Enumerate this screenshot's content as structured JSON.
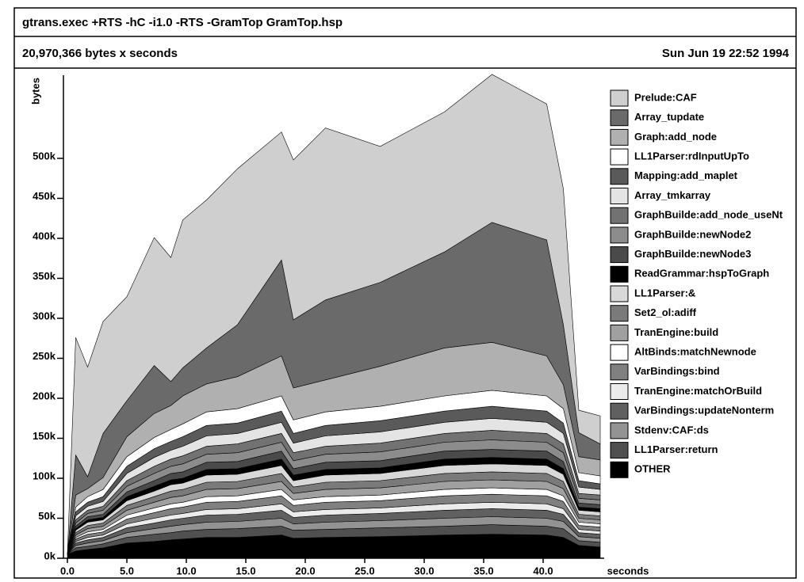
{
  "chart_data": {
    "type": "stacked_area",
    "title": "gtrans.exec +RTS -hC -i1.0 -RTS -GramTop GramTop.hsp",
    "subtitle": "20,970,366 bytes x seconds",
    "date": "Sun Jun 19 22:52 1994",
    "y_label": "bytes",
    "x_label": "seconds",
    "x": [
      0,
      0.7,
      1.7,
      3,
      5,
      7.3,
      8.7,
      9.7,
      11.7,
      14.3,
      18,
      19,
      21.7,
      26.3,
      31.7,
      35.7,
      40.3,
      41.7,
      43,
      44.8
    ],
    "xlim": [
      0,
      45
    ],
    "xticks": [
      {
        "value": 0,
        "label": "0.0"
      },
      {
        "value": 5,
        "label": "5.0"
      },
      {
        "value": 10,
        "label": "10.0"
      },
      {
        "value": 15,
        "label": "15.0"
      },
      {
        "value": 20,
        "label": "20.0"
      },
      {
        "value": 25,
        "label": "25.0"
      },
      {
        "value": 30,
        "label": "30.0"
      },
      {
        "value": 35,
        "label": "35.0"
      },
      {
        "value": 40,
        "label": "40.0"
      }
    ],
    "ylim": [
      0,
      600
    ],
    "yticks": [
      {
        "value": 0,
        "label": "0k"
      },
      {
        "value": 50,
        "label": "50k"
      },
      {
        "value": 100,
        "label": "100k"
      },
      {
        "value": 150,
        "label": "150k"
      },
      {
        "value": 200,
        "label": "200k"
      },
      {
        "value": 250,
        "label": "250k"
      },
      {
        "value": 300,
        "label": "300k"
      },
      {
        "value": 350,
        "label": "350k"
      },
      {
        "value": 400,
        "label": "400k"
      },
      {
        "value": 450,
        "label": "450k"
      },
      {
        "value": 500,
        "label": "500k"
      }
    ],
    "series": [
      {
        "name": "Prelude:CAF",
        "color": "#cfcfcf",
        "values": [
          0,
          147,
          137,
          140,
          130,
          160,
          155,
          185,
          185,
          195,
          160,
          200,
          215,
          170,
          175,
          185,
          170,
          170,
          28,
          35
        ]
      },
      {
        "name": "Array_tupdate",
        "color": "#6a6a6a",
        "values": [
          0,
          50,
          15,
          55,
          45,
          60,
          30,
          35,
          45,
          65,
          120,
          85,
          100,
          105,
          120,
          150,
          145,
          75,
          30,
          20
        ]
      },
      {
        "name": "Graph:add_node",
        "color": "#b0b0b0",
        "values": [
          0,
          15,
          10,
          15,
          25,
          30,
          30,
          35,
          35,
          40,
          50,
          40,
          40,
          50,
          60,
          60,
          50,
          30,
          20,
          20
        ]
      },
      {
        "name": "LL1Parser:rdInputUpTo",
        "color": "#ffffff",
        "values": [
          0,
          6,
          7,
          9,
          12,
          14,
          15,
          16,
          17,
          18,
          19,
          17,
          17,
          18,
          19,
          20,
          19,
          18,
          10,
          10
        ]
      },
      {
        "name": "Mapping:add_maplet",
        "color": "#5a5a5a",
        "values": [
          0,
          5,
          5,
          6,
          9,
          11,
          11,
          12,
          13,
          13,
          14,
          12,
          13,
          14,
          14,
          15,
          14,
          13,
          8,
          7
        ]
      },
      {
        "name": "Array_tmkarray",
        "color": "#e4e4e4",
        "values": [
          0,
          5,
          5,
          6,
          9,
          11,
          11,
          12,
          13,
          13,
          14,
          12,
          13,
          14,
          14,
          15,
          14,
          13,
          8,
          7
        ]
      },
      {
        "name": "GraphBuilde:add_node_useNt",
        "color": "#727272",
        "values": [
          0,
          4,
          4,
          5,
          7,
          9,
          9,
          10,
          10,
          11,
          11,
          10,
          10,
          11,
          11,
          12,
          11,
          11,
          6,
          6
        ]
      },
      {
        "name": "GraphBuilde:newNode2",
        "color": "#8c8c8c",
        "values": [
          0,
          4,
          4,
          5,
          7,
          9,
          9,
          10,
          10,
          11,
          11,
          10,
          10,
          11,
          11,
          12,
          11,
          11,
          6,
          6
        ]
      },
      {
        "name": "GraphBuilde:newNode3",
        "color": "#4a4a4a",
        "values": [
          0,
          3,
          4,
          4,
          6,
          7,
          8,
          8,
          9,
          9,
          10,
          8,
          9,
          9,
          10,
          10,
          10,
          9,
          5,
          5
        ]
      },
      {
        "name": "ReadGrammar:hspToGraph",
        "color": "#000000",
        "values": [
          0,
          2,
          3,
          3,
          5,
          6,
          6,
          6,
          7,
          7,
          8,
          7,
          7,
          7,
          8,
          8,
          8,
          7,
          4,
          4
        ]
      },
      {
        "name": "LL1Parser:&",
        "color": "#d8d8d8",
        "values": [
          0,
          3,
          4,
          4,
          6,
          7,
          8,
          8,
          9,
          9,
          10,
          8,
          9,
          9,
          10,
          10,
          10,
          9,
          5,
          5
        ]
      },
      {
        "name": "Set2_ol:adiff",
        "color": "#7a7a7a",
        "values": [
          0,
          3,
          4,
          4,
          6,
          7,
          8,
          8,
          9,
          9,
          10,
          8,
          9,
          9,
          10,
          10,
          10,
          9,
          5,
          5
        ]
      },
      {
        "name": "TranEngine:build",
        "color": "#a0a0a0",
        "values": [
          0,
          3,
          4,
          4,
          6,
          7,
          8,
          8,
          9,
          9,
          10,
          8,
          9,
          9,
          10,
          10,
          10,
          9,
          5,
          5
        ]
      },
      {
        "name": "AltBinds:matchNewnode",
        "color": "#ffffff",
        "values": [
          0,
          2,
          3,
          3,
          5,
          6,
          6,
          6,
          7,
          7,
          8,
          7,
          7,
          7,
          8,
          8,
          8,
          7,
          4,
          4
        ]
      },
      {
        "name": "VarBindings:bind",
        "color": "#808080",
        "values": [
          0,
          3,
          4,
          4,
          6,
          7,
          8,
          8,
          9,
          9,
          10,
          8,
          9,
          9,
          10,
          10,
          10,
          9,
          5,
          5
        ]
      },
      {
        "name": "TranEngine:matchOrBuild",
        "color": "#ebebeb",
        "values": [
          0,
          2,
          3,
          3,
          5,
          6,
          6,
          6,
          7,
          7,
          8,
          7,
          7,
          7,
          8,
          8,
          8,
          7,
          4,
          4
        ]
      },
      {
        "name": "VarBindings:updateNonterm",
        "color": "#606060",
        "values": [
          0,
          3,
          4,
          4,
          6,
          7,
          8,
          8,
          9,
          9,
          10,
          8,
          9,
          9,
          10,
          10,
          10,
          9,
          5,
          5
        ]
      },
      {
        "name": "Stdenv:CAF:ds",
        "color": "#939393",
        "values": [
          0,
          3,
          4,
          4,
          6,
          7,
          8,
          8,
          9,
          9,
          10,
          8,
          9,
          9,
          10,
          10,
          10,
          9,
          5,
          5
        ]
      },
      {
        "name": "LL1Parser:return",
        "color": "#505050",
        "values": [
          0,
          4,
          4,
          5,
          7,
          9,
          9,
          10,
          10,
          11,
          11,
          10,
          10,
          11,
          11,
          12,
          11,
          11,
          6,
          6
        ]
      },
      {
        "name": "OTHER",
        "color": "#000000",
        "values": [
          5,
          9,
          11,
          13,
          19,
          21,
          23,
          24,
          26,
          26,
          29,
          25,
          26,
          27,
          29,
          30,
          29,
          26,
          16,
          14
        ]
      }
    ]
  }
}
